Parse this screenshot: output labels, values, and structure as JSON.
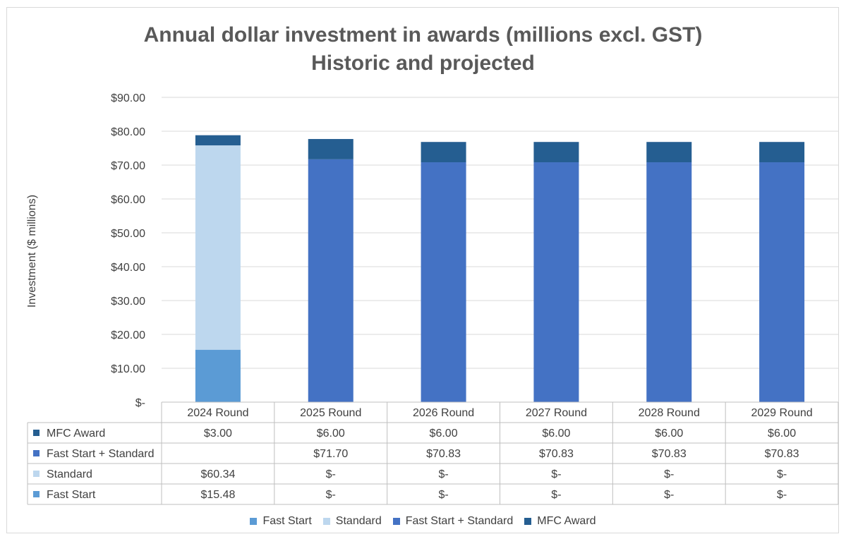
{
  "chart_data": {
    "type": "bar",
    "stacked": true,
    "title_line1": "Annual dollar investment in awards (millions excl. GST)",
    "title_line2": "Historic and projected",
    "ylabel": "Investment ($ millions)",
    "ylim": [
      0,
      90
    ],
    "y_ticks": [
      {
        "value": 0,
        "label": "$-"
      },
      {
        "value": 10,
        "label": "$10.00"
      },
      {
        "value": 20,
        "label": "$20.00"
      },
      {
        "value": 30,
        "label": "$30.00"
      },
      {
        "value": 40,
        "label": "$40.00"
      },
      {
        "value": 50,
        "label": "$50.00"
      },
      {
        "value": 60,
        "label": "$60.00"
      },
      {
        "value": 70,
        "label": "$70.00"
      },
      {
        "value": 80,
        "label": "$80.00"
      },
      {
        "value": 90,
        "label": "$90.00"
      }
    ],
    "categories": [
      "2024 Round",
      "2025 Round",
      "2026 Round",
      "2027 Round",
      "2028 Round",
      "2029 Round"
    ],
    "series": [
      {
        "name": "Fast Start",
        "color": "#5b9bd5",
        "values": [
          15.48,
          0,
          0,
          0,
          0,
          0
        ],
        "table_labels": [
          "$15.48",
          "$-",
          "$-",
          "$-",
          "$-",
          "$-"
        ]
      },
      {
        "name": "Standard",
        "color": "#bdd7ee",
        "values": [
          60.34,
          0,
          0,
          0,
          0,
          0
        ],
        "table_labels": [
          "$60.34",
          "$-",
          "$-",
          "$-",
          "$-",
          "$-"
        ]
      },
      {
        "name": "Fast Start + Standard",
        "color": "#4472c4",
        "values": [
          0,
          71.7,
          70.83,
          70.83,
          70.83,
          70.83
        ],
        "table_labels": [
          "",
          "$71.70",
          "$70.83",
          "$70.83",
          "$70.83",
          "$70.83"
        ]
      },
      {
        "name": "MFC Award",
        "color": "#255e91",
        "values": [
          3.0,
          6.0,
          6.0,
          6.0,
          6.0,
          6.0
        ],
        "table_labels": [
          "$3.00",
          "$6.00",
          "$6.00",
          "$6.00",
          "$6.00",
          "$6.00"
        ]
      }
    ],
    "table_row_order": [
      "MFC Award",
      "Fast Start + Standard",
      "Standard",
      "Fast Start"
    ],
    "grid": true,
    "legend_position": "bottom"
  }
}
